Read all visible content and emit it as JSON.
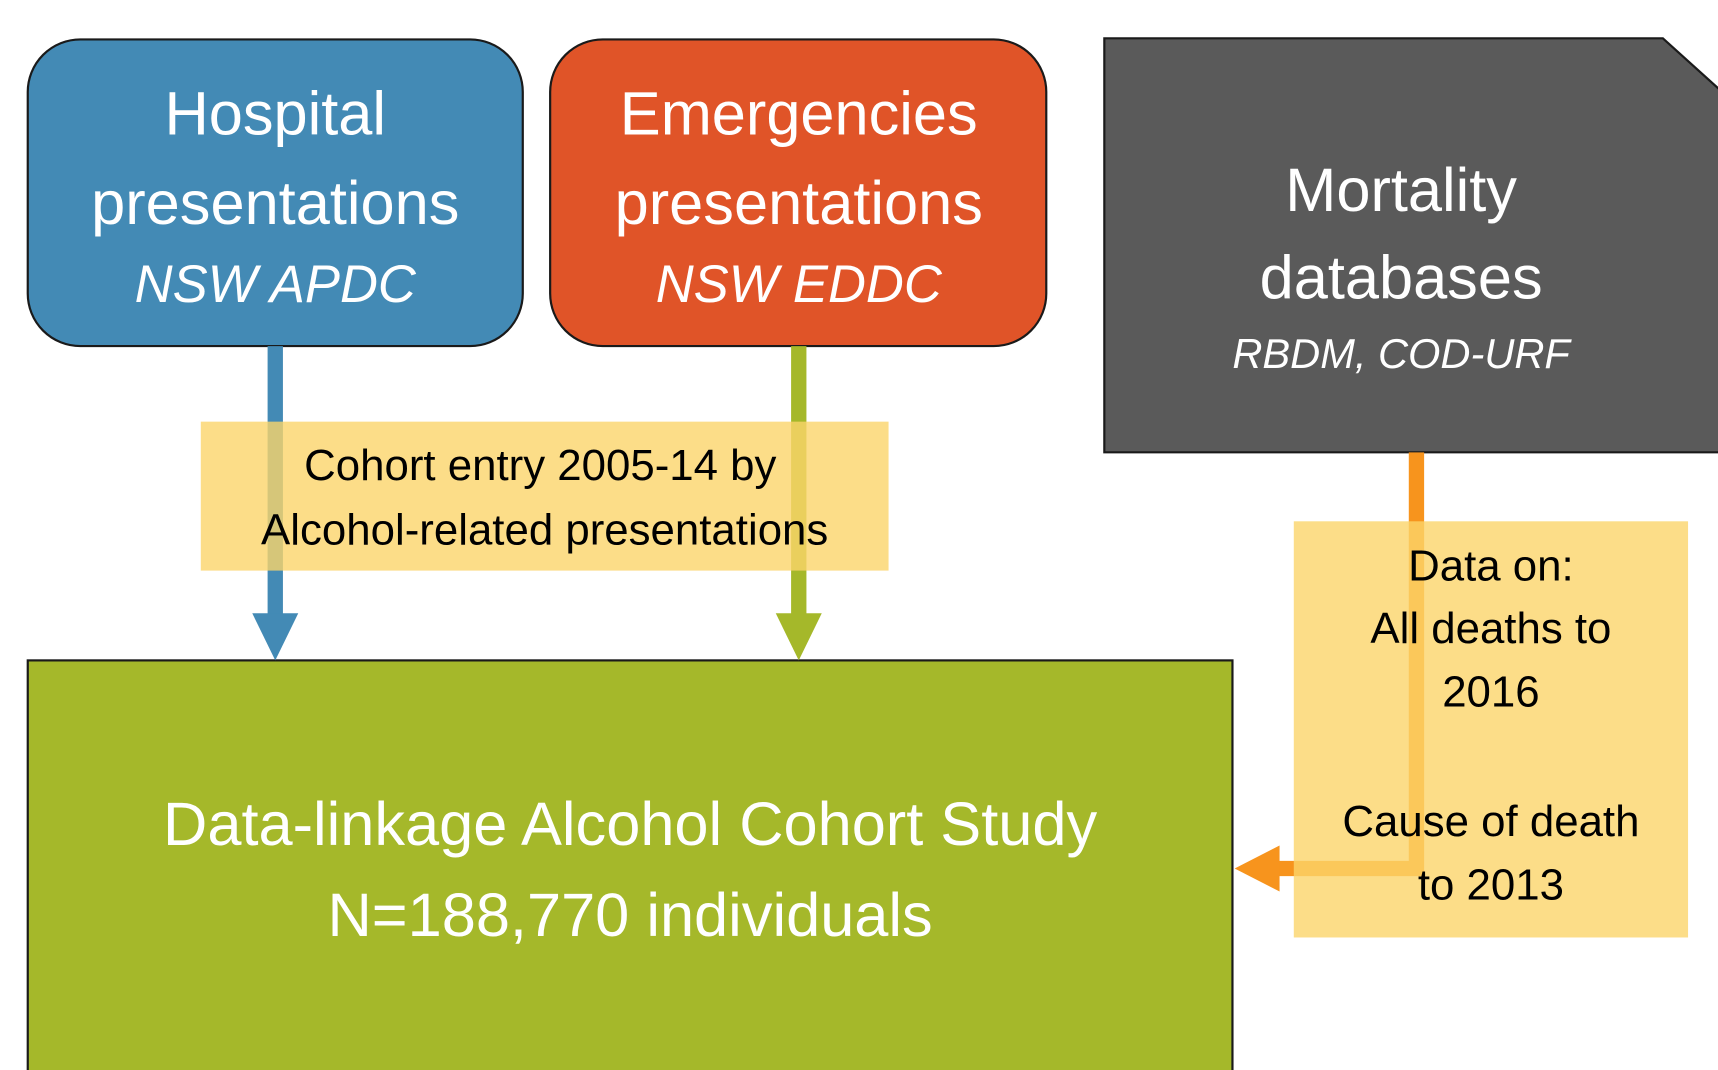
{
  "nodes": [
    {
      "id": "hospital",
      "lines": [
        "Hospital",
        "presentations"
      ],
      "subtitle": "NSW APDC"
    },
    {
      "id": "emergencies",
      "lines": [
        "Emergencies",
        "presentations"
      ],
      "subtitle": "NSW EDDC"
    },
    {
      "id": "mortality",
      "lines": [
        "Mortality",
        "databases"
      ],
      "subtitle": "RBDM, COD-URF"
    },
    {
      "id": "cohort",
      "lines": [
        "Data-linkage Alcohol Cohort Study",
        "N=188,770 individuals"
      ]
    }
  ],
  "labels": [
    {
      "lines": [
        "Cohort entry 2005-14 by",
        "Alcohol-related presentations"
      ]
    },
    {
      "lines": [
        "Data on:",
        "All deaths to",
        "2016",
        "Cause of death",
        "to 2013"
      ]
    }
  ]
}
